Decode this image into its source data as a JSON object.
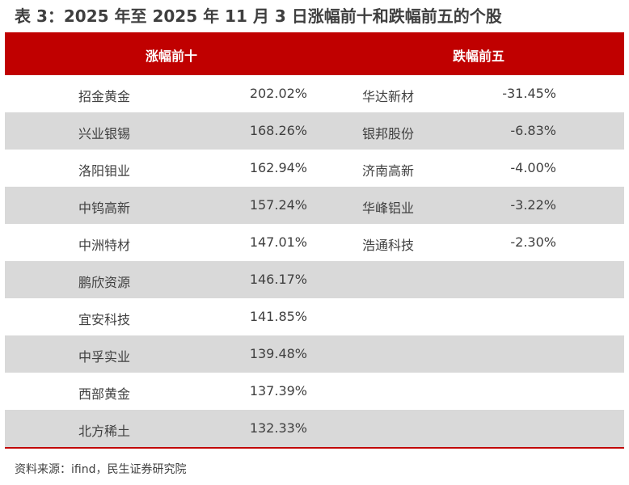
{
  "title": "表 3：2025 年至 2025 年 11 月 3 日涨幅前十和跌幅前五的个股",
  "headers": {
    "gainers": "涨幅前十",
    "losers": "跌幅前五"
  },
  "rows": [
    {
      "gainer": "招金黄金",
      "gain": "202.02%",
      "loser": "华达新材",
      "loss": "-31.45%"
    },
    {
      "gainer": "兴业银锡",
      "gain": "168.26%",
      "loser": "银邦股份",
      "loss": "-6.83%"
    },
    {
      "gainer": "洛阳钼业",
      "gain": "162.94%",
      "loser": "济南高新",
      "loss": "-4.00%"
    },
    {
      "gainer": "中钨高新",
      "gain": "157.24%",
      "loser": "华峰铝业",
      "loss": "-3.22%"
    },
    {
      "gainer": "中洲特材",
      "gain": "147.01%",
      "loser": "浩通科技",
      "loss": "-2.30%"
    },
    {
      "gainer": "鹏欣资源",
      "gain": "146.17%",
      "loser": "",
      "loss": ""
    },
    {
      "gainer": "宜安科技",
      "gain": "141.85%",
      "loser": "",
      "loss": ""
    },
    {
      "gainer": "中孚实业",
      "gain": "139.48%",
      "loser": "",
      "loss": ""
    },
    {
      "gainer": "西部黄金",
      "gain": "137.39%",
      "loser": "",
      "loss": ""
    },
    {
      "gainer": "北方稀土",
      "gain": "132.33%",
      "loser": "",
      "loss": ""
    }
  ],
  "source": "资料来源：ifind，民生证券研究院",
  "colors": {
    "header": "#c00000",
    "stripe": "#d9d9d9"
  }
}
